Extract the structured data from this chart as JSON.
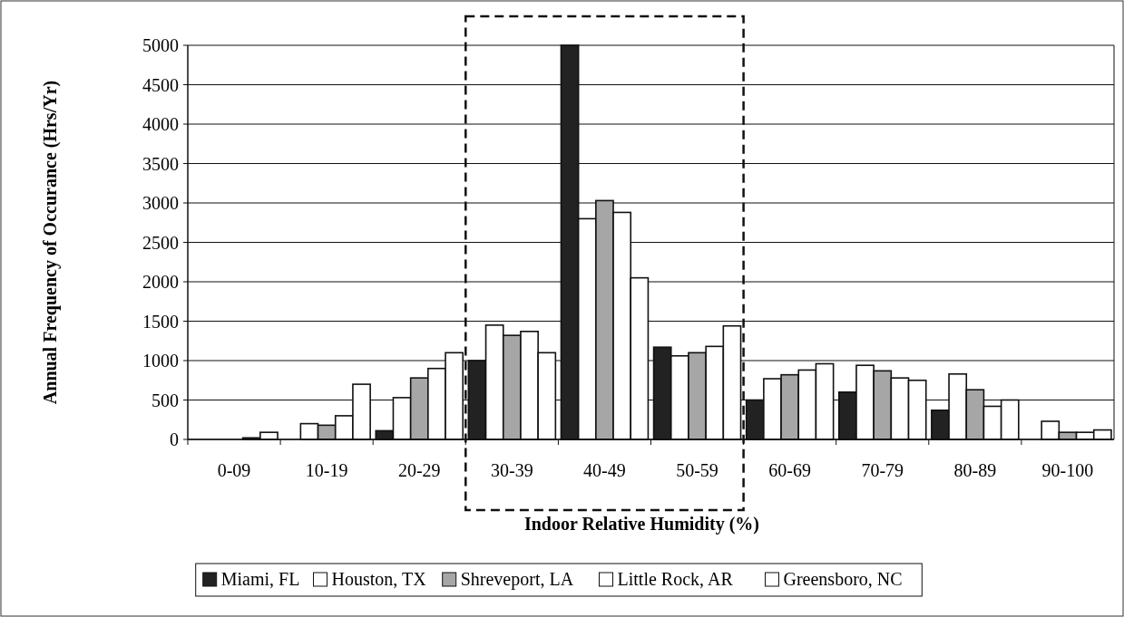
{
  "chart_data": {
    "type": "bar",
    "xlabel": "Indoor Relative Humidity (%)",
    "ylabel": "Annual Frequency of Occurance (Hrs/Yr)",
    "categories": [
      "0-09",
      "10-19",
      "20-29",
      "30-39",
      "40-49",
      "50-59",
      "60-69",
      "70-79",
      "80-89",
      "90-100"
    ],
    "series": [
      {
        "name": "Miami, FL",
        "color": "#222222",
        "values": [
          null,
          null,
          110,
          1000,
          5000,
          1170,
          500,
          600,
          370,
          null
        ]
      },
      {
        "name": "Houston, TX",
        "color": "#ffffff",
        "values": [
          null,
          200,
          530,
          1450,
          2800,
          1060,
          770,
          940,
          830,
          230
        ]
      },
      {
        "name": "Shreveport, LA",
        "color": "#a6a6a6",
        "values": [
          null,
          180,
          780,
          1320,
          3030,
          1100,
          820,
          870,
          630,
          90
        ]
      },
      {
        "name": "Little Rock, AR",
        "color": "#ffffff",
        "values": [
          20,
          300,
          900,
          1370,
          2880,
          1180,
          880,
          780,
          420,
          90
        ]
      },
      {
        "name": "Greensboro, NC",
        "color": "#ffffff",
        "values": [
          90,
          700,
          1100,
          1100,
          2050,
          1440,
          960,
          750,
          500,
          120
        ]
      }
    ],
    "ylim": [
      0,
      5000
    ],
    "yticks": [
      0,
      500,
      1000,
      1500,
      2000,
      2500,
      3000,
      3500,
      4000,
      4500,
      5000
    ],
    "grid": "y",
    "legend": "bottom"
  }
}
